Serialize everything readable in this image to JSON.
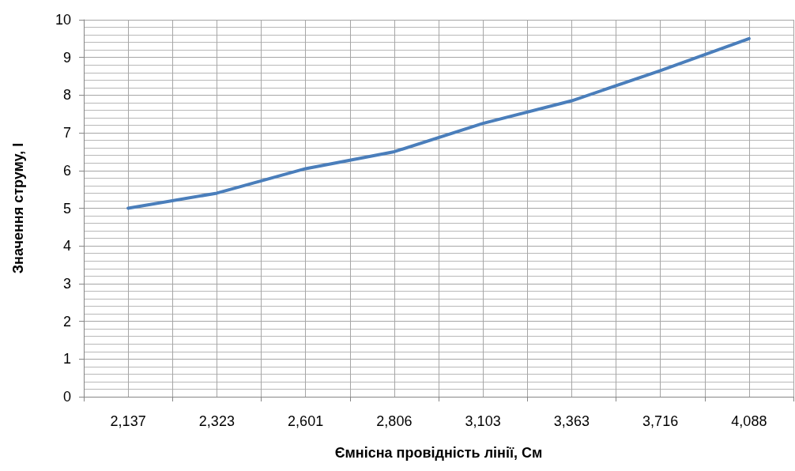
{
  "chart_data": {
    "type": "line",
    "xlabel": "Ємнісна провідність лінії, См",
    "ylabel": "Значення струму, І",
    "categories": [
      "2,137",
      "2,323",
      "2,601",
      "2,806",
      "3,103",
      "3,363",
      "3,716",
      "4,088"
    ],
    "series": [
      {
        "color": "#4a7ebb",
        "values": [
          5.0,
          5.4,
          6.05,
          6.5,
          7.25,
          7.85,
          8.65,
          9.5
        ]
      }
    ],
    "ylim": [
      0,
      10
    ],
    "yticks": [
      0,
      1,
      2,
      3,
      4,
      5,
      6,
      7,
      8,
      9,
      10
    ],
    "grid": true,
    "marker": "none",
    "line_style": "solid"
  }
}
